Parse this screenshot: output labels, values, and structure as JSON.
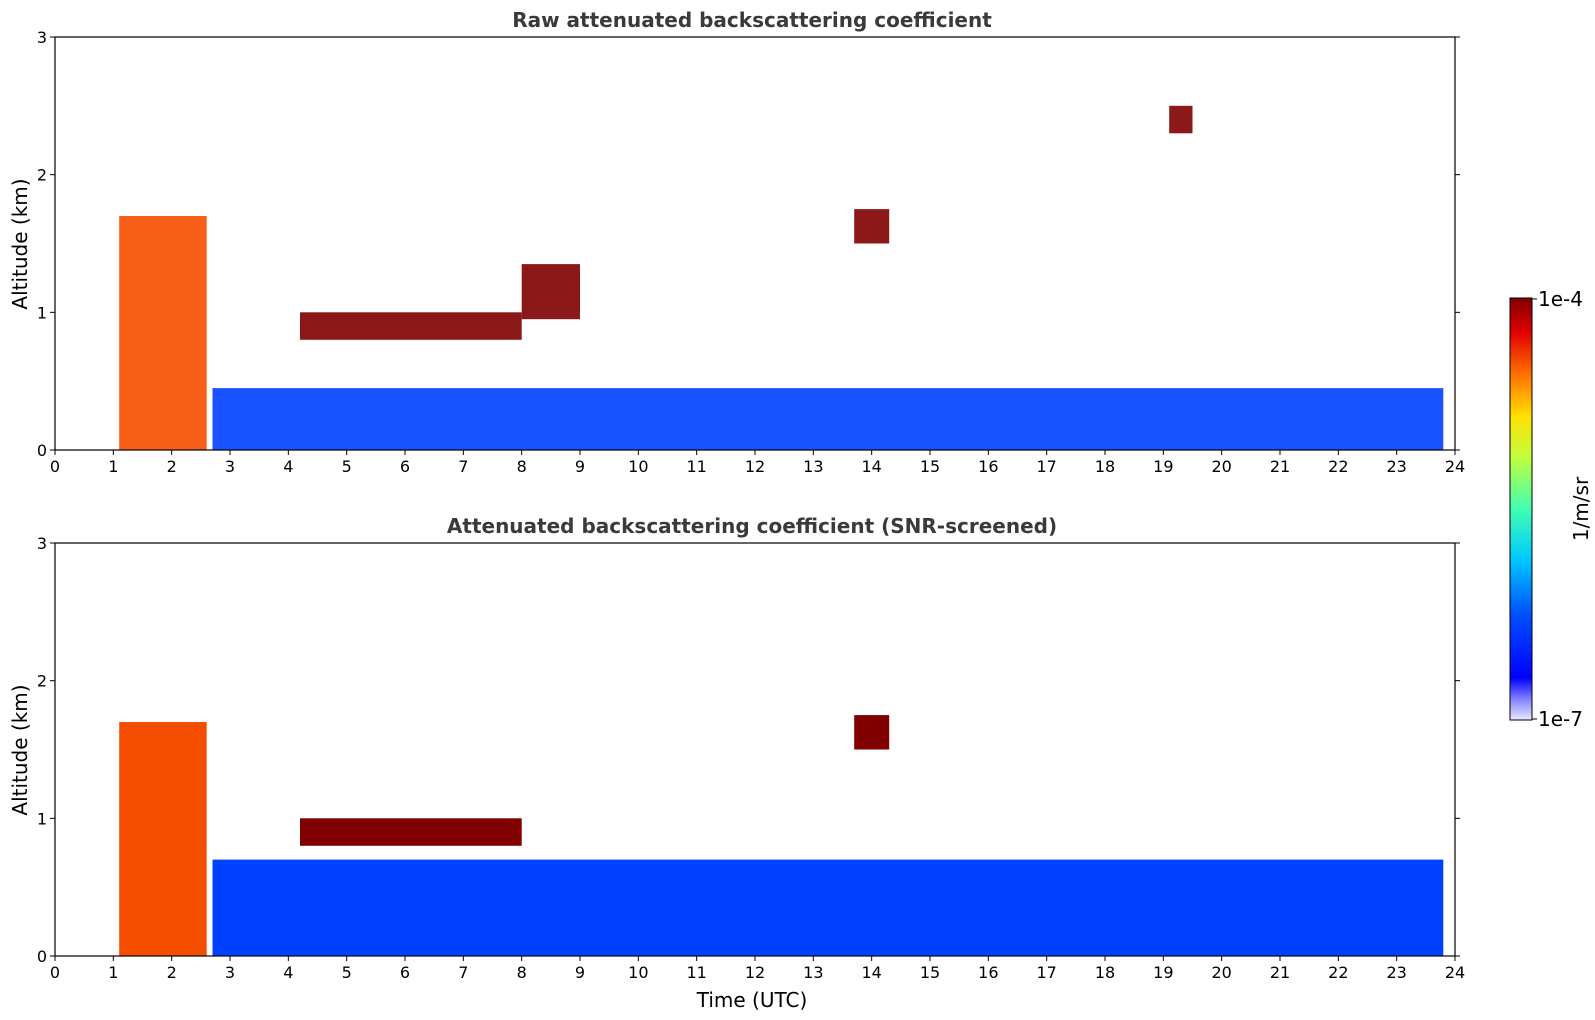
{
  "chart_data": [
    {
      "type": "heatmap",
      "title": "Raw attenuated backscattering coefficient",
      "xlabel": "",
      "ylabel": "Altitude (km)",
      "xlim": [
        0,
        24
      ],
      "ylim": [
        0,
        3
      ],
      "xticks": [
        "0",
        "1",
        "2",
        "3",
        "4",
        "5",
        "6",
        "7",
        "8",
        "9",
        "10",
        "11",
        "12",
        "13",
        "14",
        "15",
        "16",
        "17",
        "18",
        "19",
        "20",
        "21",
        "22",
        "23",
        "24"
      ],
      "yticks": [
        "0",
        "1",
        "2",
        "3"
      ],
      "screened": false,
      "layers": [
        {
          "desc": "boundary layer aerosol",
          "x": [
            2.7,
            23.8
          ],
          "y": [
            0,
            0.45
          ],
          "level": 0.22
        },
        {
          "desc": "cloud",
          "x": [
            4.2,
            8.0
          ],
          "y": [
            0.8,
            1.0
          ],
          "level": 1.0
        },
        {
          "desc": "cloud",
          "x": [
            8.0,
            9.0
          ],
          "y": [
            0.95,
            1.35
          ],
          "level": 1.0
        },
        {
          "desc": "cloud",
          "x": [
            13.7,
            14.3
          ],
          "y": [
            1.5,
            1.75
          ],
          "level": 1.0
        },
        {
          "desc": "cloud",
          "x": [
            19.1,
            19.5
          ],
          "y": [
            2.3,
            2.5
          ],
          "level": 1.0
        },
        {
          "desc": "precipitation",
          "x": [
            1.1,
            2.6
          ],
          "y": [
            0,
            1.7
          ],
          "level": 0.85
        }
      ]
    },
    {
      "type": "heatmap",
      "title": "Attenuated backscattering coefficient (SNR-screened)",
      "xlabel": "Time (UTC)",
      "ylabel": "Altitude (km)",
      "xlim": [
        0,
        24
      ],
      "ylim": [
        0,
        3
      ],
      "xticks": [
        "0",
        "1",
        "2",
        "3",
        "4",
        "5",
        "6",
        "7",
        "8",
        "9",
        "10",
        "11",
        "12",
        "13",
        "14",
        "15",
        "16",
        "17",
        "18",
        "19",
        "20",
        "21",
        "22",
        "23",
        "24"
      ],
      "yticks": [
        "0",
        "1",
        "2",
        "3"
      ],
      "screened": true,
      "layers": [
        {
          "desc": "boundary layer aerosol",
          "x": [
            2.7,
            23.8
          ],
          "y": [
            0,
            0.7
          ],
          "level": 0.22
        },
        {
          "desc": "cloud",
          "x": [
            4.2,
            8.0
          ],
          "y": [
            0.8,
            1.0
          ],
          "level": 1.0
        },
        {
          "desc": "cloud",
          "x": [
            13.7,
            14.3
          ],
          "y": [
            1.5,
            1.75
          ],
          "level": 1.0
        },
        {
          "desc": "precipitation",
          "x": [
            1.1,
            2.6
          ],
          "y": [
            0,
            1.7
          ],
          "level": 0.85
        }
      ]
    }
  ],
  "colorbar": {
    "label": "1/m/sr",
    "max_label": "1e-4",
    "min_label": "1e-7",
    "colormap": "jet",
    "scale": "log",
    "range": [
      1e-07,
      0.0001
    ]
  }
}
